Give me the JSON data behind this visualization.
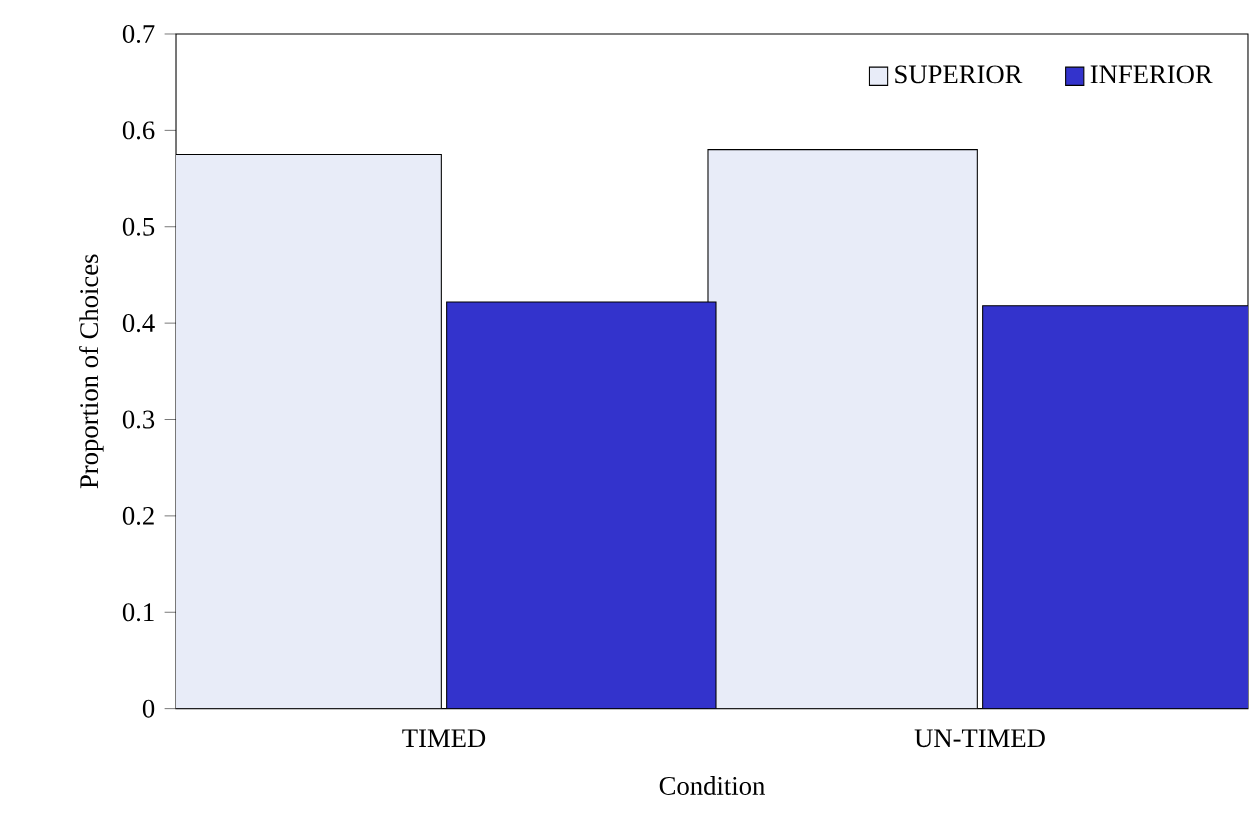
{
  "chart_data": {
    "type": "bar",
    "xlabel": "Condition",
    "ylabel": "Proportion of Choices",
    "categories": [
      "TIMED",
      "UN-TIMED"
    ],
    "series": [
      {
        "name": "SUPERIOR",
        "color": "#e8ecf8",
        "values": [
          0.575,
          0.58
        ]
      },
      {
        "name": "INFERIOR",
        "color": "#3333cc",
        "values": [
          0.422,
          0.418
        ]
      }
    ],
    "ylim": [
      0,
      0.7
    ],
    "yticks": [
      0,
      0.1,
      0.2,
      0.3,
      0.4,
      0.5,
      0.6,
      0.7
    ],
    "grid": false,
    "legend": "top right"
  }
}
